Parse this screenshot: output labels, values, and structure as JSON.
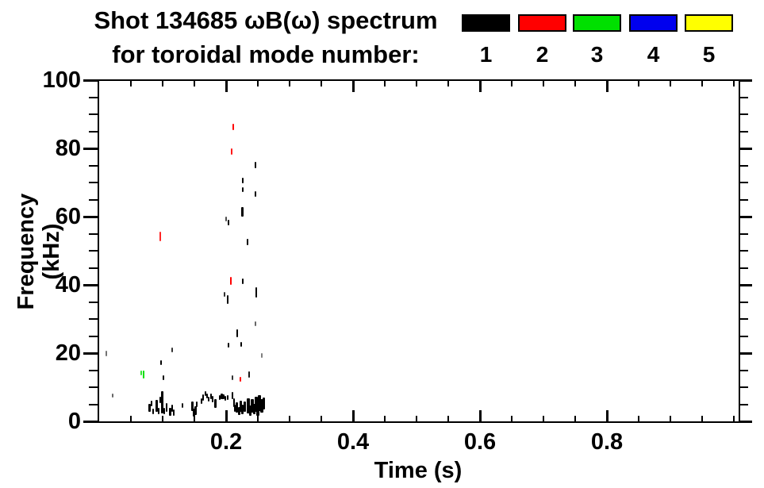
{
  "title": {
    "line1": "Shot 134685 ωB(ω) spectrum",
    "line2": "for toroidal mode number:"
  },
  "legend": {
    "items": [
      {
        "label": "1",
        "color": "#000000"
      },
      {
        "label": "2",
        "color": "#ff0000"
      },
      {
        "label": "3",
        "color": "#00e000"
      },
      {
        "label": "4",
        "color": "#0000ee"
      },
      {
        "label": "5",
        "color": "#ffff00"
      }
    ]
  },
  "axes": {
    "x_label": "Time (s)",
    "y_label": "Frequency (kHz)",
    "x_tick_labels": [
      "0.2",
      "0.4",
      "0.6",
      "0.8"
    ],
    "y_tick_labels": [
      "0",
      "20",
      "40",
      "60",
      "80",
      "100"
    ]
  },
  "chart_data": {
    "type": "scatter",
    "title": "Shot 134685 ωB(ω) spectrum for toroidal mode number: 1 2 3 4 5",
    "xlabel": "Time (s)",
    "ylabel": "Frequency (kHz)",
    "xlim": [
      0,
      1.0
    ],
    "ylim": [
      0,
      100
    ],
    "grid": false,
    "legend_position": "top-right",
    "x_major_ticks": [
      0.2,
      0.4,
      0.6,
      0.8
    ],
    "x_minor_step": 0.05,
    "y_major_ticks": [
      0,
      20,
      40,
      60,
      80,
      100
    ],
    "y_minor_step": 5,
    "point_note": "points are [time_s, freq_kHz, height_kHz, width_px, alpha]",
    "series": [
      {
        "name": "n=1",
        "mode_number": 1,
        "color": "#000000",
        "points": [
          [
            0.011,
            19.8,
            1.6,
            2,
            0.55
          ],
          [
            0.021,
            7.6,
            1.2,
            2,
            0.6
          ],
          [
            0.098,
            17.2,
            1.6,
            2,
            1
          ],
          [
            0.101,
            12.8,
            1.6,
            2,
            1
          ],
          [
            0.115,
            20.9,
            1.4,
            2,
            0.8
          ],
          [
            0.197,
            37.1,
            1.4,
            2,
            0.8
          ],
          [
            0.2,
            59.3,
            1.2,
            2,
            0.7
          ],
          [
            0.204,
            58.3,
            1.6,
            2,
            1
          ],
          [
            0.203,
            35.7,
            2.4,
            2,
            1
          ],
          [
            0.204,
            22.3,
            1.4,
            2,
            1
          ],
          [
            0.21,
            12.8,
            1.2,
            2,
            0.8
          ],
          [
            0.218,
            25.8,
            2.4,
            2,
            1
          ],
          [
            0.224,
            22.5,
            1.5,
            2,
            1
          ],
          [
            0.226,
            70.6,
            1.6,
            2,
            1
          ],
          [
            0.226,
            67.9,
            1.6,
            2,
            1
          ],
          [
            0.226,
            61.4,
            2.6,
            3,
            1
          ],
          [
            0.226,
            41.0,
            1.6,
            2,
            1
          ],
          [
            0.234,
            52.6,
            1.8,
            2,
            1
          ],
          [
            0.236,
            13.8,
            1.8,
            2,
            0.9
          ],
          [
            0.246,
            75.1,
            1.8,
            2,
            1
          ],
          [
            0.246,
            66.6,
            1.8,
            2,
            1
          ],
          [
            0.247,
            37.8,
            3.2,
            2,
            1
          ],
          [
            0.246,
            28.6,
            1.4,
            2,
            0.6
          ],
          [
            0.256,
            19.3,
            1.5,
            2,
            0.5
          ],
          [
            0.079,
            3.9,
            2.4,
            3,
            1
          ],
          [
            0.082,
            5.2,
            1.6,
            2,
            1
          ],
          [
            0.085,
            3.0,
            1.6,
            2,
            1
          ],
          [
            0.091,
            4.5,
            3.4,
            3,
            1
          ],
          [
            0.094,
            3.0,
            2.0,
            2,
            1
          ],
          [
            0.096,
            6.2,
            1.8,
            2,
            1
          ],
          [
            0.099,
            5.6,
            6.6,
            3,
            1
          ],
          [
            0.103,
            3.0,
            2.0,
            2,
            1
          ],
          [
            0.106,
            4.0,
            2.6,
            2,
            1
          ],
          [
            0.112,
            2.8,
            2.4,
            3,
            1
          ],
          [
            0.115,
            3.8,
            2.0,
            2,
            1
          ],
          [
            0.118,
            2.5,
            1.8,
            2,
            1
          ],
          [
            0.131,
            4.6,
            1.3,
            2,
            0.9
          ],
          [
            0.147,
            4.4,
            2.6,
            3,
            1
          ],
          [
            0.149,
            2.6,
            2.4,
            3,
            1
          ],
          [
            0.152,
            3.2,
            2.6,
            3,
            1
          ],
          [
            0.154,
            5.0,
            1.6,
            2,
            1
          ],
          [
            0.161,
            6.0,
            1.6,
            2,
            1
          ],
          [
            0.164,
            7.0,
            1.8,
            2,
            1
          ],
          [
            0.167,
            8.2,
            1.5,
            2,
            1
          ],
          [
            0.17,
            7.4,
            1.3,
            2,
            1
          ],
          [
            0.173,
            6.5,
            1.5,
            2,
            1
          ],
          [
            0.176,
            7.3,
            1.5,
            2,
            1
          ],
          [
            0.179,
            6.6,
            1.9,
            2,
            1
          ],
          [
            0.183,
            5.3,
            2.6,
            3,
            1
          ],
          [
            0.19,
            7.0,
            1.5,
            2,
            1
          ],
          [
            0.193,
            7.4,
            1.6,
            3,
            1
          ],
          [
            0.196,
            7.2,
            1.6,
            3,
            1
          ],
          [
            0.199,
            6.8,
            1.3,
            2,
            1
          ],
          [
            0.202,
            7.0,
            1.5,
            2,
            1
          ],
          [
            0.21,
            7.6,
            2.0,
            2,
            1
          ],
          [
            0.212,
            5.5,
            2.6,
            2,
            1
          ],
          [
            0.214,
            3.8,
            2.0,
            2,
            1
          ],
          [
            0.217,
            4.0,
            3.0,
            3,
            1
          ],
          [
            0.22,
            3.1,
            2.4,
            3,
            1
          ],
          [
            0.223,
            4.4,
            3.4,
            3,
            1
          ],
          [
            0.226,
            3.5,
            2.6,
            3,
            1
          ],
          [
            0.229,
            4.2,
            3.0,
            3,
            1
          ],
          [
            0.235,
            4.5,
            4.4,
            4,
            1
          ],
          [
            0.238,
            3.2,
            3.0,
            3,
            1
          ],
          [
            0.241,
            4.6,
            4.0,
            4,
            1
          ],
          [
            0.244,
            3.6,
            3.0,
            3,
            1
          ],
          [
            0.247,
            5.0,
            4.4,
            4,
            1
          ],
          [
            0.25,
            4.2,
            5.0,
            4,
            1
          ],
          [
            0.253,
            5.4,
            4.6,
            4,
            1
          ],
          [
            0.256,
            4.6,
            4.0,
            4,
            1
          ],
          [
            0.259,
            5.2,
            3.4,
            3,
            1
          ]
        ]
      },
      {
        "name": "n=2",
        "mode_number": 2,
        "color": "#ff0000",
        "points": [
          [
            0.096,
            54.2,
            2.8,
            2,
            0.85
          ],
          [
            0.211,
            86.2,
            1.8,
            2,
            1
          ],
          [
            0.209,
            79.1,
            1.8,
            2,
            0.9
          ],
          [
            0.208,
            41.2,
            2.2,
            2,
            1
          ],
          [
            0.2225,
            12.4,
            1.4,
            2,
            1
          ]
        ]
      },
      {
        "name": "n=3",
        "mode_number": 3,
        "color": "#00e000",
        "points": [
          [
            0.066,
            14.3,
            1.4,
            2,
            0.8
          ],
          [
            0.07,
            13.8,
            2.4,
            2,
            1
          ]
        ]
      },
      {
        "name": "n=4",
        "mode_number": 4,
        "color": "#0000ee",
        "points": []
      },
      {
        "name": "n=5",
        "mode_number": 5,
        "color": "#ffff00",
        "points": []
      }
    ]
  }
}
